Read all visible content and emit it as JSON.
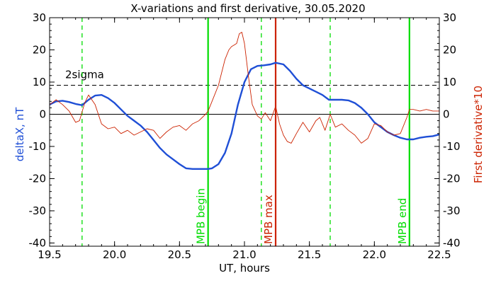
{
  "chart_data": {
    "type": "line",
    "title": "X-variations and first derivative, 30.05.2020",
    "xlabel": "UT, hours",
    "ylabel_left": "deltaX, nT",
    "ylabel_right": "First derivative*10",
    "xlim": [
      19.5,
      22.5
    ],
    "ylim": [
      -41,
      30
    ],
    "x_ticks": [
      19.5,
      20.0,
      20.5,
      21.0,
      21.5,
      22.0,
      22.5
    ],
    "x_tick_labels": [
      "19.5",
      "20.0",
      "20.5",
      "21.0",
      "21.5",
      "22.0",
      "22.5"
    ],
    "y_ticks": [
      30,
      20,
      10,
      0,
      -10,
      -20,
      -30,
      -40
    ],
    "y_tick_labels": [
      "30",
      "20",
      "10",
      "0",
      "-10",
      "-20",
      "-30",
      "-40"
    ],
    "colors": {
      "deltaX": "#1f4fd6",
      "derivative": "#cc2200",
      "mpb": "#00dd00",
      "max": "#cc2200",
      "axis": "#000000"
    },
    "sigma": {
      "value": 9,
      "label": "2sigma"
    },
    "zero_line": 0,
    "vlines": [
      {
        "name": "mpb-begin",
        "x": 20.72,
        "label": "MPB begin",
        "style": "solid",
        "color": "#00dd00"
      },
      {
        "name": "mpb-max",
        "x": 21.24,
        "label": "MPB max",
        "style": "solid",
        "color": "#cc2200"
      },
      {
        "name": "mpb-end",
        "x": 22.27,
        "label": "MPB end",
        "style": "solid",
        "color": "#00dd00"
      },
      {
        "name": "dash-1",
        "x": 19.75,
        "label": "",
        "style": "dashed",
        "color": "#00dd00"
      },
      {
        "name": "dash-2",
        "x": 21.13,
        "label": "",
        "style": "dashed",
        "color": "#00dd00"
      },
      {
        "name": "dash-3",
        "x": 21.66,
        "label": "",
        "style": "dashed",
        "color": "#00dd00"
      }
    ],
    "series": [
      {
        "key": "deltaX",
        "x": [
          19.5,
          19.55,
          19.6,
          19.65,
          19.7,
          19.75,
          19.8,
          19.85,
          19.9,
          19.95,
          20.0,
          20.05,
          20.1,
          20.15,
          20.2,
          20.25,
          20.3,
          20.35,
          20.4,
          20.45,
          20.5,
          20.55,
          20.6,
          20.65,
          20.7,
          20.72,
          20.75,
          20.8,
          20.85,
          20.9,
          20.95,
          21.0,
          21.05,
          21.1,
          21.15,
          21.2,
          21.24,
          21.3,
          21.35,
          21.4,
          21.45,
          21.5,
          21.55,
          21.6,
          21.65,
          21.7,
          21.75,
          21.8,
          21.85,
          21.9,
          21.95,
          22.0,
          22.05,
          22.1,
          22.15,
          22.2,
          22.25,
          22.3,
          22.35,
          22.4,
          22.45,
          22.5
        ],
        "values": [
          3.0,
          4.0,
          4.2,
          3.8,
          3.2,
          2.8,
          4.5,
          5.8,
          6.0,
          5.0,
          3.5,
          1.5,
          -0.5,
          -2.0,
          -3.5,
          -5.5,
          -8.0,
          -10.5,
          -12.5,
          -14.0,
          -15.5,
          -16.8,
          -17.0,
          -17.0,
          -17.0,
          -17.0,
          -16.8,
          -15.5,
          -12.0,
          -6.0,
          3.0,
          10.0,
          14.0,
          15.0,
          15.2,
          15.5,
          16.0,
          15.5,
          13.5,
          11.0,
          9.0,
          8.0,
          7.0,
          6.0,
          4.5,
          4.5,
          4.5,
          4.3,
          3.5,
          2.0,
          0.0,
          -2.5,
          -4.0,
          -5.5,
          -6.5,
          -7.3,
          -7.8,
          -7.8,
          -7.3,
          -7.0,
          -6.8,
          -6.3
        ]
      },
      {
        "key": "derivative",
        "x": [
          19.5,
          19.55,
          19.6,
          19.65,
          19.7,
          19.73,
          19.77,
          19.8,
          19.85,
          19.9,
          19.95,
          20.0,
          20.05,
          20.1,
          20.15,
          20.2,
          20.25,
          20.3,
          20.35,
          20.4,
          20.45,
          20.5,
          20.55,
          20.6,
          20.65,
          20.7,
          20.72,
          20.75,
          20.8,
          20.85,
          20.88,
          20.9,
          20.92,
          20.94,
          20.96,
          20.98,
          21.0,
          21.03,
          21.06,
          21.1,
          21.13,
          21.16,
          21.2,
          21.24,
          21.27,
          21.3,
          21.33,
          21.36,
          21.4,
          21.45,
          21.5,
          21.55,
          21.58,
          21.62,
          21.66,
          21.7,
          21.75,
          21.8,
          21.85,
          21.9,
          21.95,
          22.0,
          22.05,
          22.1,
          22.15,
          22.2,
          22.25,
          22.27,
          22.3,
          22.35,
          22.4,
          22.45,
          22.5
        ],
        "values": [
          3.0,
          4.5,
          3.0,
          1.0,
          -2.5,
          -2.0,
          3.5,
          6.0,
          3.0,
          -3.0,
          -4.5,
          -4.0,
          -6.0,
          -5.0,
          -6.5,
          -5.5,
          -4.5,
          -5.0,
          -7.5,
          -5.5,
          -4.0,
          -3.5,
          -5.0,
          -3.0,
          -2.0,
          0.0,
          1.0,
          4.0,
          9.0,
          17.0,
          20.0,
          21.0,
          21.5,
          22.0,
          25.0,
          25.5,
          22.0,
          12.0,
          3.0,
          -0.5,
          -1.5,
          0.5,
          -2.0,
          2.5,
          -3.0,
          -6.5,
          -8.5,
          -9.0,
          -6.0,
          -2.5,
          -5.5,
          -2.0,
          -1.0,
          -5.0,
          0.0,
          -4.0,
          -3.0,
          -5.0,
          -6.5,
          -9.0,
          -7.5,
          -3.0,
          -3.5,
          -5.5,
          -6.5,
          -6.0,
          -1.0,
          1.5,
          1.5,
          1.0,
          1.5,
          1.0,
          1.0
        ]
      }
    ]
  }
}
